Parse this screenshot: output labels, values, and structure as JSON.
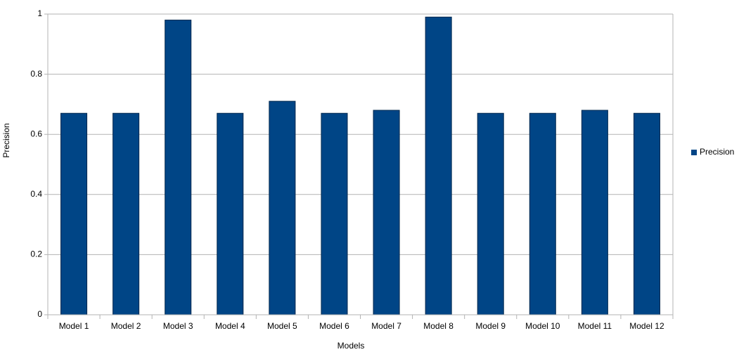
{
  "chart_data": {
    "type": "bar",
    "x_label": "Models",
    "y_label": "Precision",
    "categories": [
      "Model 1",
      "Model 2",
      "Model 3",
      "Model 4",
      "Model 5",
      "Model 6",
      "Model 7",
      "Model 8",
      "Model 9",
      "Model 10",
      "Model 11",
      "Model 12"
    ],
    "series": [
      {
        "name": "Precision",
        "color": "#004586",
        "values": [
          0.67,
          0.67,
          0.98,
          0.67,
          0.71,
          0.67,
          0.68,
          0.99,
          0.67,
          0.67,
          0.68,
          0.67
        ]
      }
    ],
    "ylim": [
      0,
      1
    ],
    "yticks": [
      0,
      0.2,
      0.4,
      0.6,
      0.8,
      1
    ],
    "grid": true,
    "legend": "right"
  }
}
